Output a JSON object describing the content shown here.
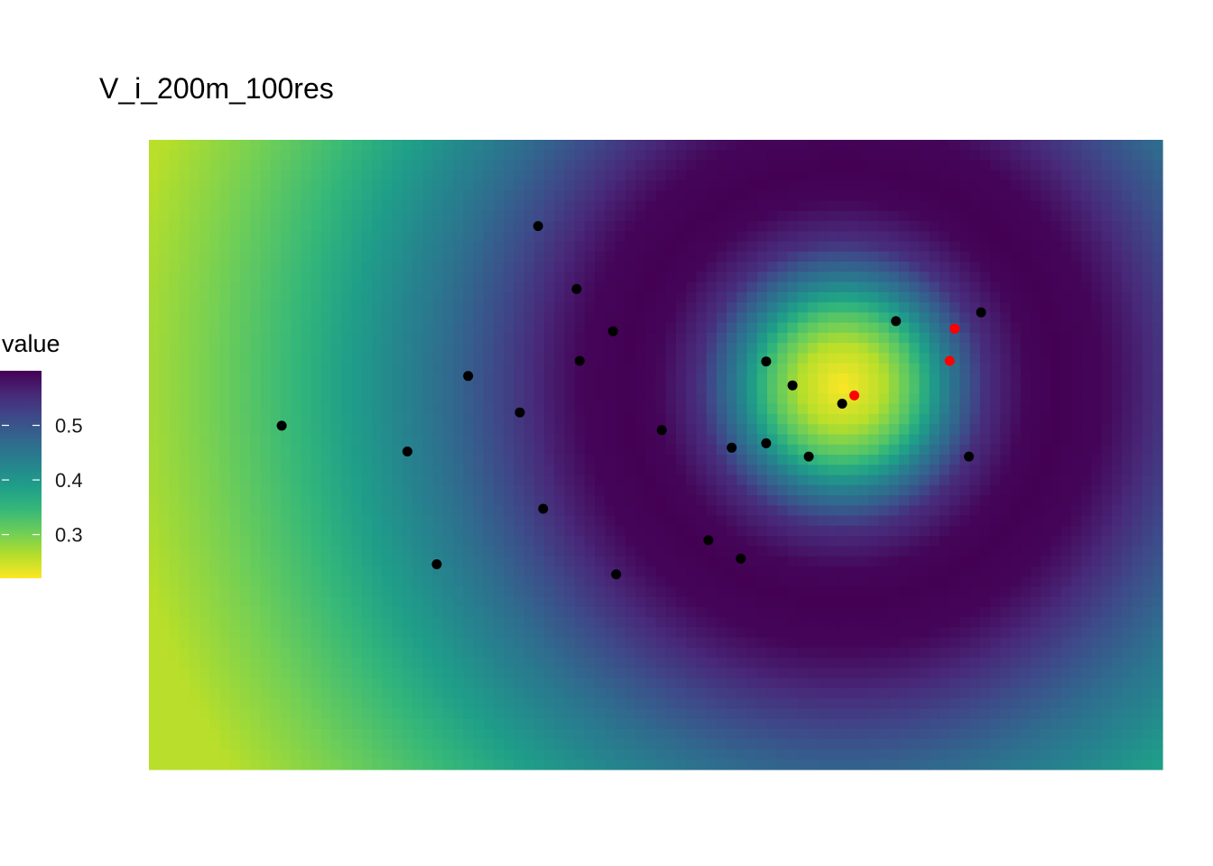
{
  "chart_data": {
    "type": "heatmap",
    "title": "V_i_200m_100res",
    "xlabel": "",
    "ylabel": "",
    "axes_visible": false,
    "grid": false,
    "colormap": "viridis (reversed: low = yellow, high = purple)",
    "colormap_stops": [
      "#fde725",
      "#b5de2b",
      "#6ece58",
      "#35b779",
      "#1f9e89",
      "#26828e",
      "#31688e",
      "#3e4989",
      "#482878",
      "#440154"
    ],
    "field_description": "Radial wave pattern centred near the upper-right cluster: minimum (~0.22) at the centre, maximum (~0.60) in a ring, decreasing again toward the left edge.",
    "field_center": [
      0.684,
      0.39
    ],
    "legend": {
      "title": "value",
      "placement": "left",
      "min": 0.22,
      "max": 0.6,
      "ticks": [
        0.5,
        0.4,
        0.3
      ],
      "tick_labels": [
        "0.5",
        "0.4",
        "0.3"
      ]
    },
    "points": {
      "black": [
        [
          0.384,
          0.137
        ],
        [
          0.422,
          0.237
        ],
        [
          0.458,
          0.304
        ],
        [
          0.425,
          0.351
        ],
        [
          0.315,
          0.375
        ],
        [
          0.366,
          0.433
        ],
        [
          0.131,
          0.454
        ],
        [
          0.255,
          0.495
        ],
        [
          0.389,
          0.586
        ],
        [
          0.284,
          0.674
        ],
        [
          0.461,
          0.69
        ],
        [
          0.552,
          0.636
        ],
        [
          0.506,
          0.461
        ],
        [
          0.575,
          0.489
        ],
        [
          0.609,
          0.482
        ],
        [
          0.609,
          0.352
        ],
        [
          0.635,
          0.39
        ],
        [
          0.651,
          0.503
        ],
        [
          0.684,
          0.419
        ],
        [
          0.737,
          0.288
        ],
        [
          0.821,
          0.274
        ],
        [
          0.809,
          0.503
        ],
        [
          0.584,
          0.665
        ]
      ],
      "red": [
        [
          0.696,
          0.406
        ],
        [
          0.795,
          0.3
        ],
        [
          0.79,
          0.351
        ]
      ]
    }
  }
}
